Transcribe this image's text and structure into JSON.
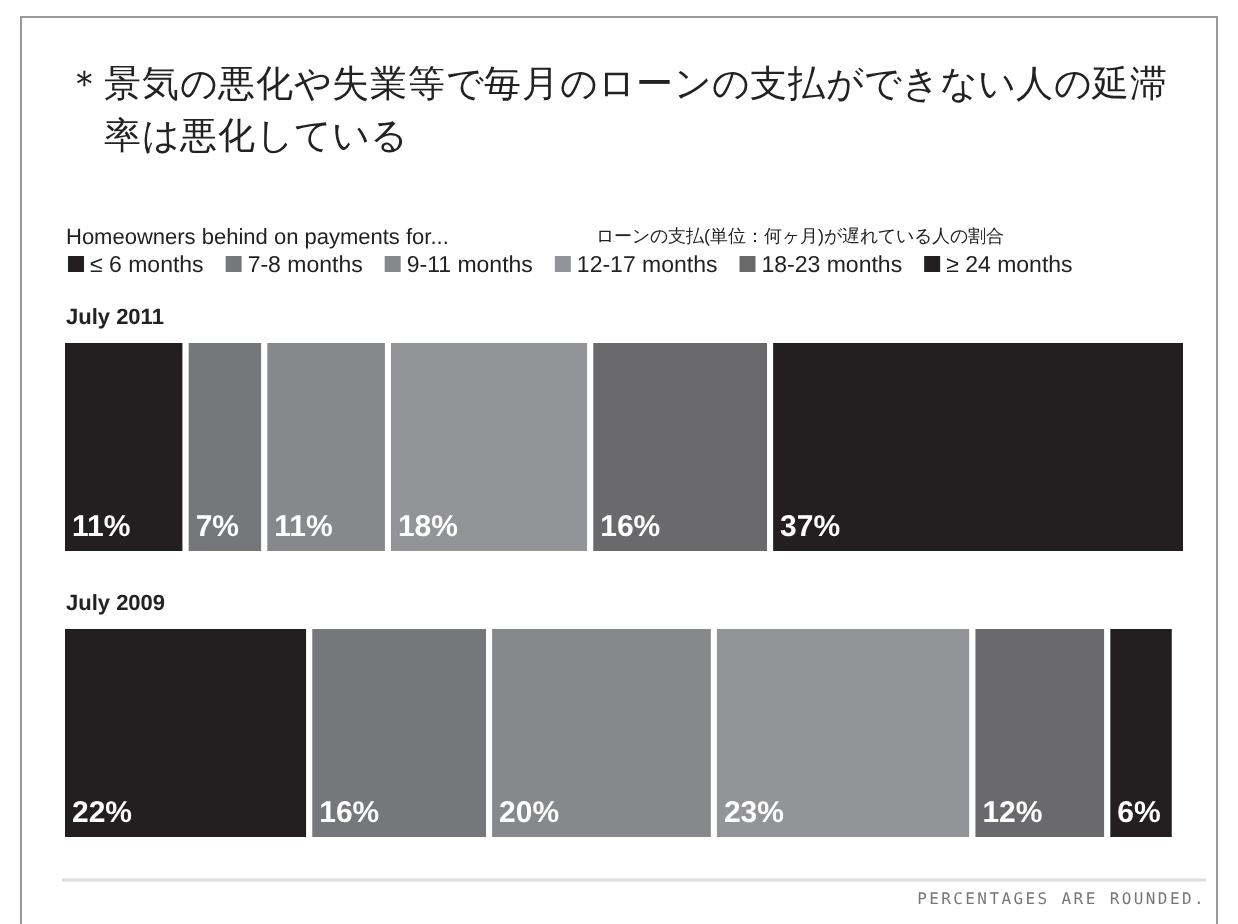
{
  "chart_data": {
    "type": "bar",
    "orientation": "horizontal",
    "stacked": true,
    "title": "＊景気の悪化や失業等で毎月のローンの支払ができない人の延滞率は悪化している",
    "legend_title": "Homeowners behind on payments for...",
    "annotations": [
      "ローンの支払(単位：何ヶ月)が遅れている人の割合",
      "PERCENTAGES ARE ROUNDED."
    ],
    "categories": [
      "July 2011",
      "July 2009"
    ],
    "xlim": [
      0,
      100
    ],
    "legend": "top left",
    "series": [
      {
        "name": "≤ 6 months",
        "color": "#231f20",
        "values": [
          11,
          22
        ],
        "value_labels": [
          "11%",
          "22%"
        ]
      },
      {
        "name": "7-8 months",
        "color": "#76777b",
        "values": [
          7,
          16
        ],
        "value_labels": [
          "7%",
          "16%"
        ]
      },
      {
        "name": "9-11 months",
        "color": "#87888c",
        "values": [
          11,
          20
        ],
        "value_labels": [
          "11%",
          "20%"
        ]
      },
      {
        "name": "12-17 months",
        "color": "#939498",
        "values": [
          18,
          23
        ],
        "value_labels": [
          "18%",
          "23%"
        ]
      },
      {
        "name": "18-23 months",
        "color": "#6a6a6c",
        "values": [
          16,
          12
        ],
        "value_labels": [
          "16%",
          "12%"
        ]
      },
      {
        "name": "≥ 24 months",
        "color": "#231f20",
        "values": [
          37,
          6
        ],
        "value_labels": [
          "37%",
          "6%"
        ]
      }
    ]
  }
}
